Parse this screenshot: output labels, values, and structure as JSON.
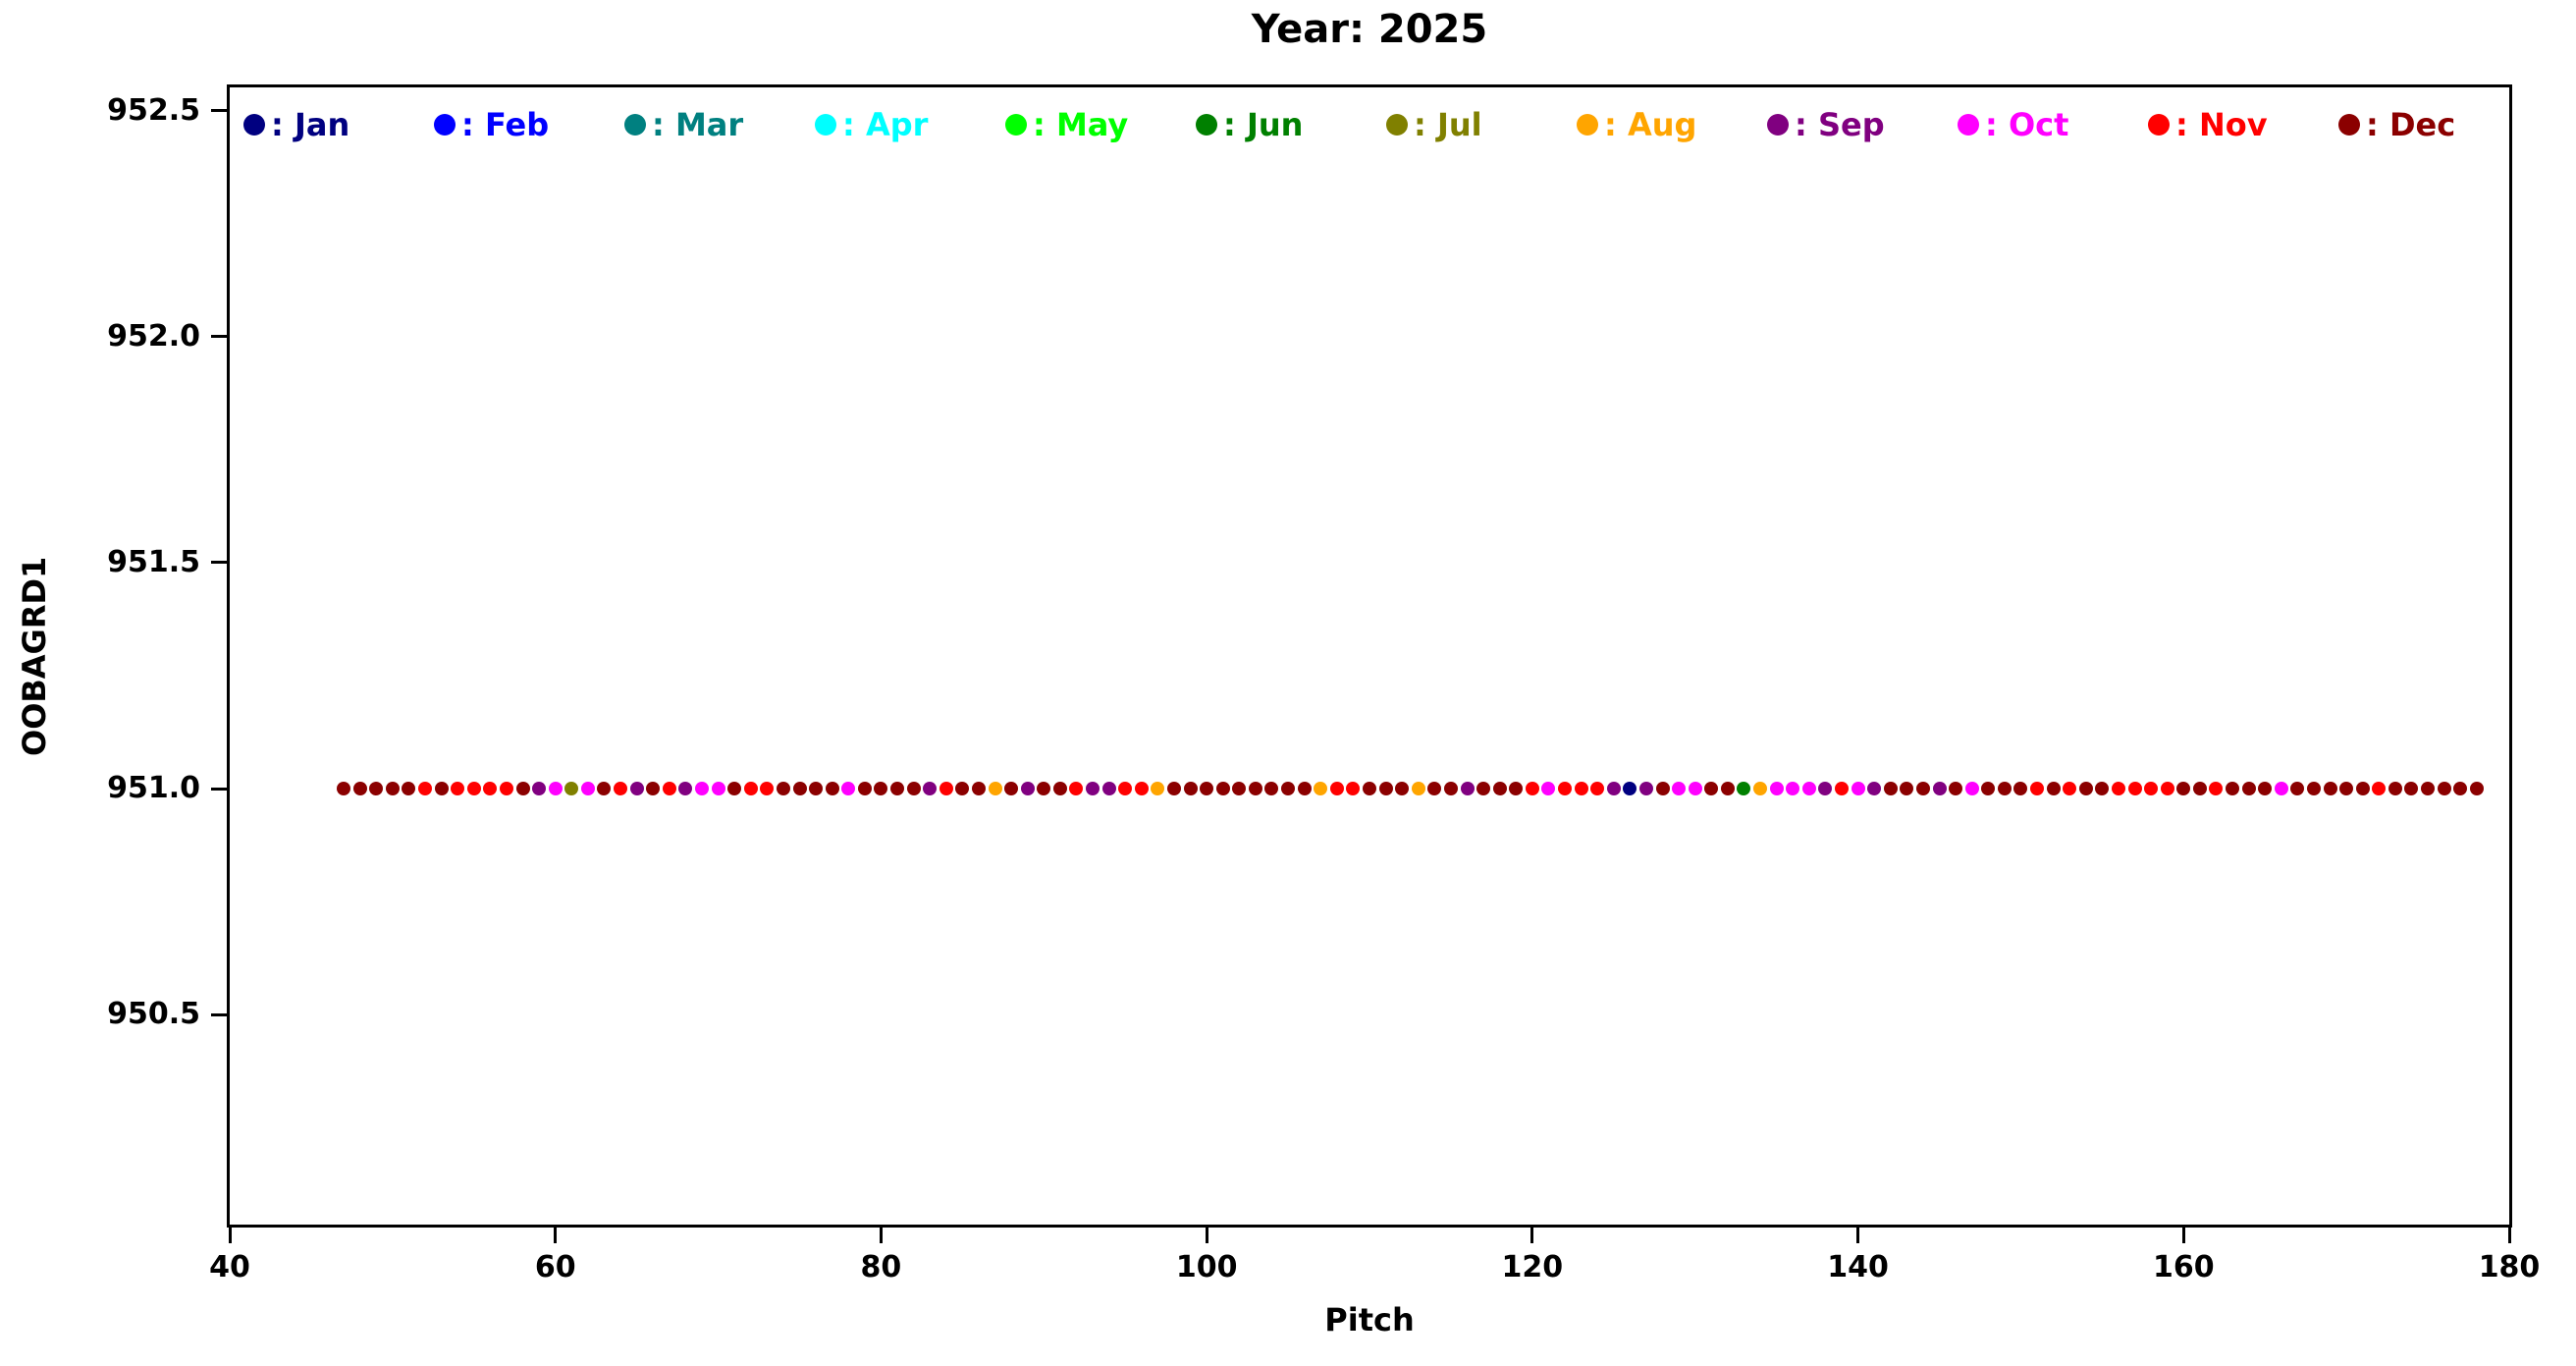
{
  "chart_data": {
    "type": "scatter",
    "title": "Year: 2025",
    "xlabel": "Pitch",
    "ylabel": "OOBAGRD1",
    "xlim": [
      40,
      180
    ],
    "ylim": [
      950.035,
      952.552
    ],
    "xticks": [
      40,
      60,
      80,
      100,
      120,
      140,
      160,
      180
    ],
    "yticks": [
      952.5,
      952.0,
      951.5,
      951.0,
      950.5
    ],
    "ytick_labels": [
      "952.5",
      "952.0",
      "951.5",
      "951.0",
      "950.5"
    ],
    "grid": false,
    "legend_position": "top-inside-row",
    "legend": [
      {
        "month": "Jan",
        "label": ": Jan",
        "color": "#000080"
      },
      {
        "month": "Feb",
        "label": ": Feb",
        "color": "#0000FF"
      },
      {
        "month": "Mar",
        "label": ": Mar",
        "color": "#008080"
      },
      {
        "month": "Apr",
        "label": ": Apr",
        "color": "#00FFFF"
      },
      {
        "month": "May",
        "label": ": May",
        "color": "#00FF00"
      },
      {
        "month": "Jun",
        "label": ": Jun",
        "color": "#008000"
      },
      {
        "month": "Jul",
        "label": ": Jul",
        "color": "#808000"
      },
      {
        "month": "Aug",
        "label": ": Aug",
        "color": "#FFA500"
      },
      {
        "month": "Sep",
        "label": ": Sep",
        "color": "#800080"
      },
      {
        "month": "Oct",
        "label": ": Oct",
        "color": "#FF00FF"
      },
      {
        "month": "Nov",
        "label": ": Nov",
        "color": "#FF0000"
      },
      {
        "month": "Dec",
        "label": ": Dec",
        "color": "#8B0000"
      }
    ],
    "y_constant": 951.0,
    "points_start_x": 47,
    "points_step": 1,
    "point_months": [
      "Dec",
      "Dec",
      "Dec",
      "Dec",
      "Dec",
      "Nov",
      "Dec",
      "Nov",
      "Nov",
      "Nov",
      "Nov",
      "Dec",
      "Sep",
      "Oct",
      "Jul",
      "Oct",
      "Dec",
      "Nov",
      "Sep",
      "Dec",
      "Nov",
      "Sep",
      "Oct",
      "Oct",
      "Dec",
      "Nov",
      "Nov",
      "Dec",
      "Dec",
      "Dec",
      "Dec",
      "Oct",
      "Dec",
      "Dec",
      "Dec",
      "Dec",
      "Sep",
      "Nov",
      "Dec",
      "Dec",
      "Aug",
      "Dec",
      "Sep",
      "Dec",
      "Dec",
      "Nov",
      "Sep",
      "Sep",
      "Nov",
      "Nov",
      "Aug",
      "Dec",
      "Dec",
      "Dec",
      "Dec",
      "Dec",
      "Dec",
      "Dec",
      "Dec",
      "Dec",
      "Aug",
      "Nov",
      "Nov",
      "Dec",
      "Dec",
      "Dec",
      "Aug",
      "Dec",
      "Dec",
      "Sep",
      "Dec",
      "Dec",
      "Dec",
      "Nov",
      "Oct",
      "Nov",
      "Nov",
      "Nov",
      "Sep",
      "Jan",
      "Sep",
      "Dec",
      "Oct",
      "Oct",
      "Dec",
      "Dec",
      "Jun",
      "Aug",
      "Oct",
      "Oct",
      "Oct",
      "Sep",
      "Nov",
      "Oct",
      "Sep",
      "Dec",
      "Dec",
      "Dec",
      "Sep",
      "Dec",
      "Oct",
      "Dec",
      "Dec",
      "Dec",
      "Nov",
      "Dec",
      "Nov",
      "Dec",
      "Dec",
      "Nov",
      "Nov",
      "Nov",
      "Nov",
      "Dec",
      "Dec",
      "Nov",
      "Dec",
      "Dec",
      "Dec",
      "Oct",
      "Dec",
      "Dec",
      "Dec",
      "Dec",
      "Dec",
      "Nov",
      "Dec",
      "Dec",
      "Dec",
      "Dec",
      "Dec",
      "Dec"
    ]
  }
}
